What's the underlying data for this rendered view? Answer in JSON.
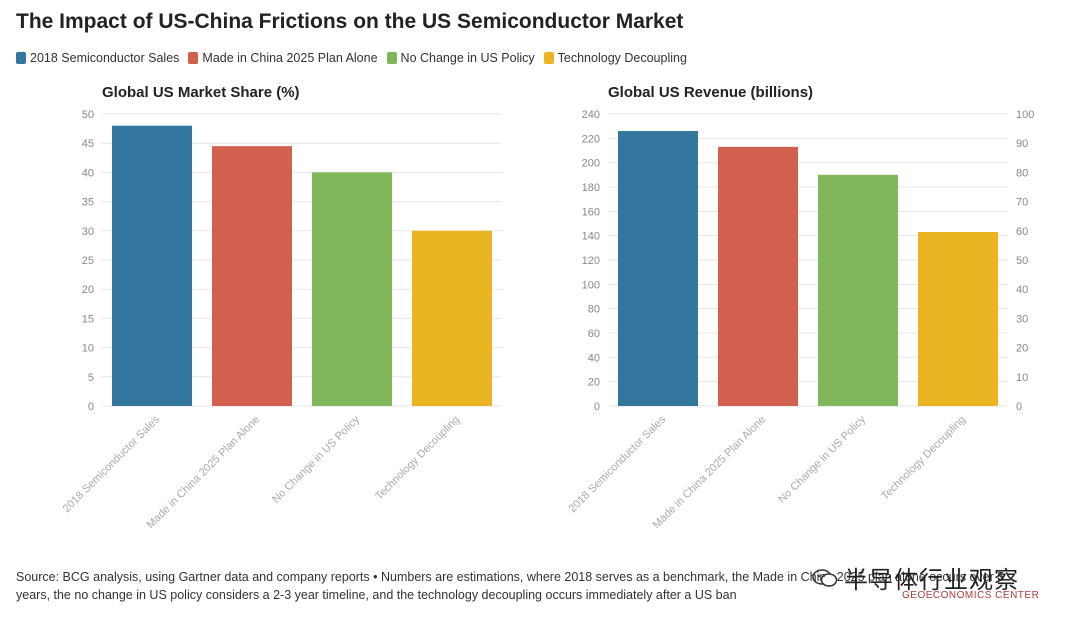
{
  "title": "The Impact of US-China Frictions on the US Semiconductor Market",
  "legend": [
    {
      "label": "2018 Semiconductor Sales",
      "color": "#33779f"
    },
    {
      "label": "Made in China 2025 Plan Alone",
      "color": "#d2604f"
    },
    {
      "label": "No Change in US Policy",
      "color": "#80b75b"
    },
    {
      "label": "Technology Decoupling",
      "color": "#ebb422"
    }
  ],
  "chart_data": [
    {
      "type": "bar",
      "title": "Global US Market Share (%)",
      "categories": [
        "2018 Semiconductor Sales",
        "Made in China 2025 Plan Alone",
        "No Change in US Policy",
        "Technology Decoupling"
      ],
      "values": [
        48,
        44.5,
        40,
        30
      ],
      "colors": [
        "#33779f",
        "#d2604f",
        "#80b75b",
        "#ebb422"
      ],
      "ylim": [
        0,
        50
      ],
      "yticks": [
        0,
        5,
        10,
        15,
        20,
        25,
        30,
        35,
        40,
        45,
        50
      ],
      "grid": true
    },
    {
      "type": "bar",
      "title": "Global US Revenue (billions)",
      "categories": [
        "2018 Semiconductor Sales",
        "Made in China 2025 Plan Alone",
        "No Change in US Policy",
        "Technology Decoupling"
      ],
      "values": [
        226,
        213,
        190,
        143
      ],
      "colors": [
        "#33779f",
        "#d2604f",
        "#80b75b",
        "#ebb422"
      ],
      "ylim": [
        0,
        240
      ],
      "yticks": [
        0,
        20,
        40,
        60,
        80,
        100,
        120,
        140,
        160,
        180,
        200,
        220,
        240
      ],
      "y2lim": [
        0,
        100
      ],
      "y2ticks": [
        0,
        10,
        20,
        30,
        40,
        50,
        60,
        70,
        80,
        90,
        100
      ],
      "grid": true
    }
  ],
  "source": "Source: BCG analysis, using Gartner data and company reports • Numbers are estimations, where 2018 serves as a benchmark, the Made in China 2025 plan alone occurs over 5 years, the no change in US policy considers a 2-3 year timeline, and the technology decoupling occurs immediately after a US ban",
  "watermark": {
    "text": "半导体行业观察",
    "sub": "GEOECONOMICS CENTER"
  }
}
